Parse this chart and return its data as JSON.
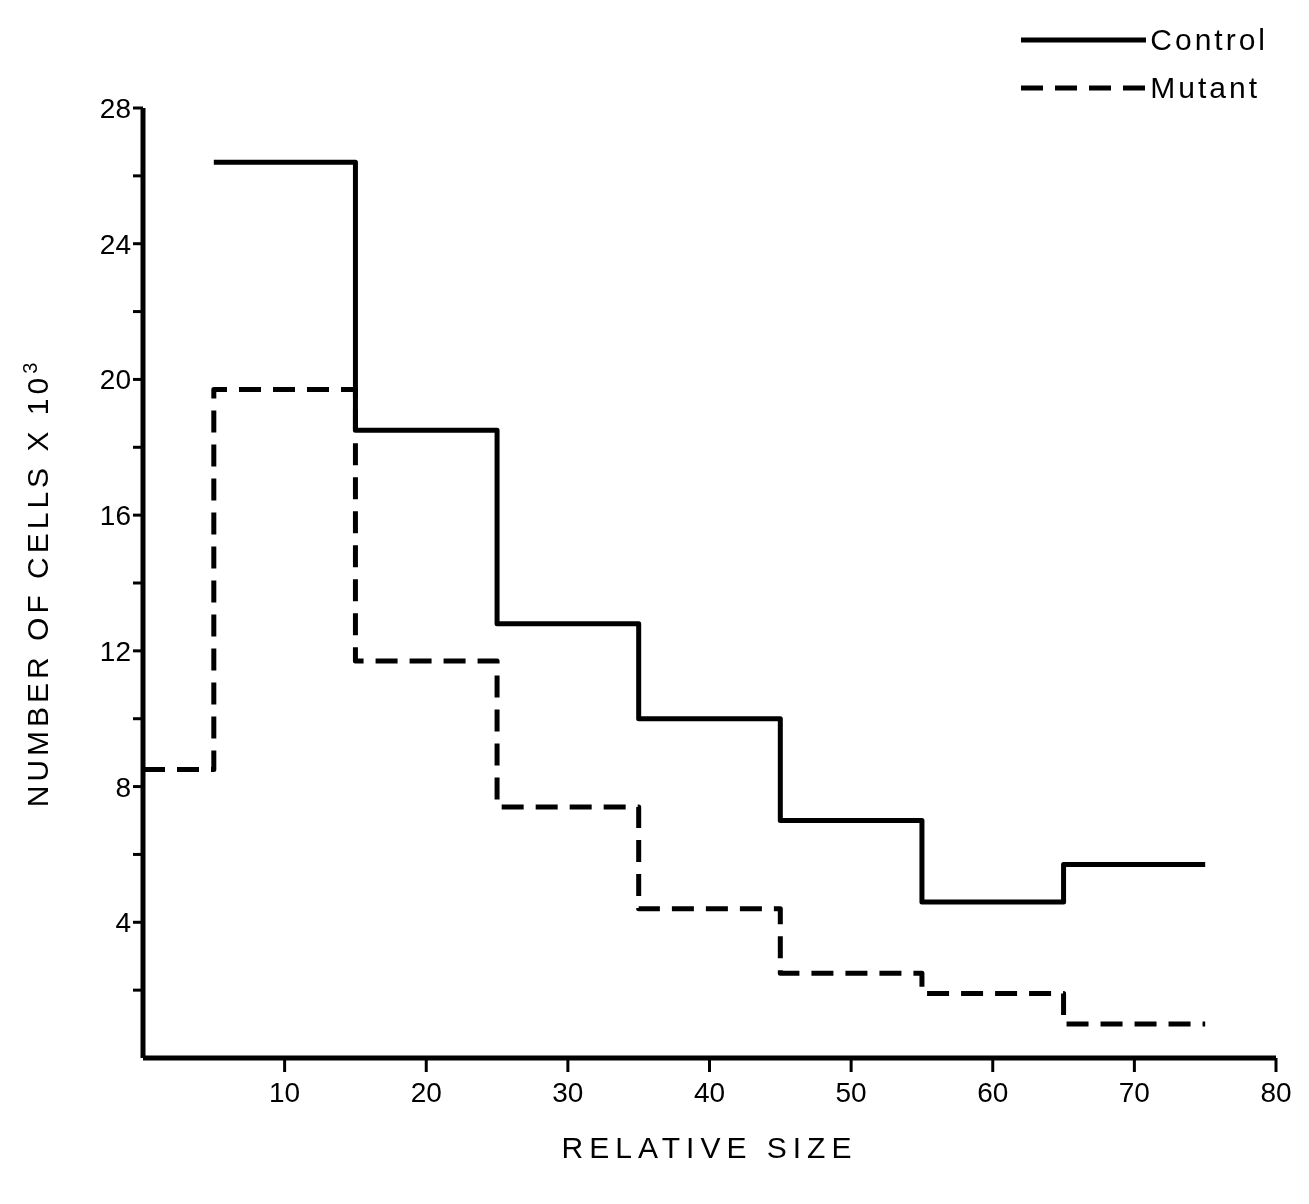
{
  "chart_data": {
    "type": "step",
    "xlabel": "RELATIVE SIZE",
    "ylabel": "NUMBER OF CELLS X 10$^{3}$",
    "xlim": [
      0,
      80
    ],
    "xticks": [
      10,
      20,
      30,
      40,
      50,
      60,
      70,
      80
    ],
    "ylim": [
      0,
      28
    ],
    "yticks": [
      {
        "value": 2,
        "label": null
      },
      4,
      {
        "value": 6,
        "label": null
      },
      8,
      {
        "value": 10,
        "label": null
      },
      12,
      {
        "value": 14,
        "label": null
      },
      16,
      {
        "value": 18,
        "label": null
      },
      20,
      {
        "value": 22,
        "label": null
      },
      24,
      {
        "value": 26,
        "label": null
      },
      28
    ],
    "grid": false,
    "legend": "top right",
    "marker": "none",
    "series": [
      {
        "name": "Control",
        "color": "#000000",
        "line_style": "solid",
        "x": [
          5,
          15,
          25,
          35,
          45,
          55,
          65,
          75
        ],
        "values": [
          26.4,
          18.5,
          12.8,
          10.0,
          7.0,
          4.6,
          5.7,
          5.7
        ]
      },
      {
        "name": "Mutant",
        "color": "#000000",
        "line_style": "dashed",
        "x": [
          0,
          5,
          15,
          25,
          35,
          45,
          55,
          65,
          75
        ],
        "values": [
          8.5,
          19.7,
          11.7,
          7.4,
          4.4,
          2.5,
          1.9,
          1.0,
          1.0
        ]
      }
    ]
  }
}
